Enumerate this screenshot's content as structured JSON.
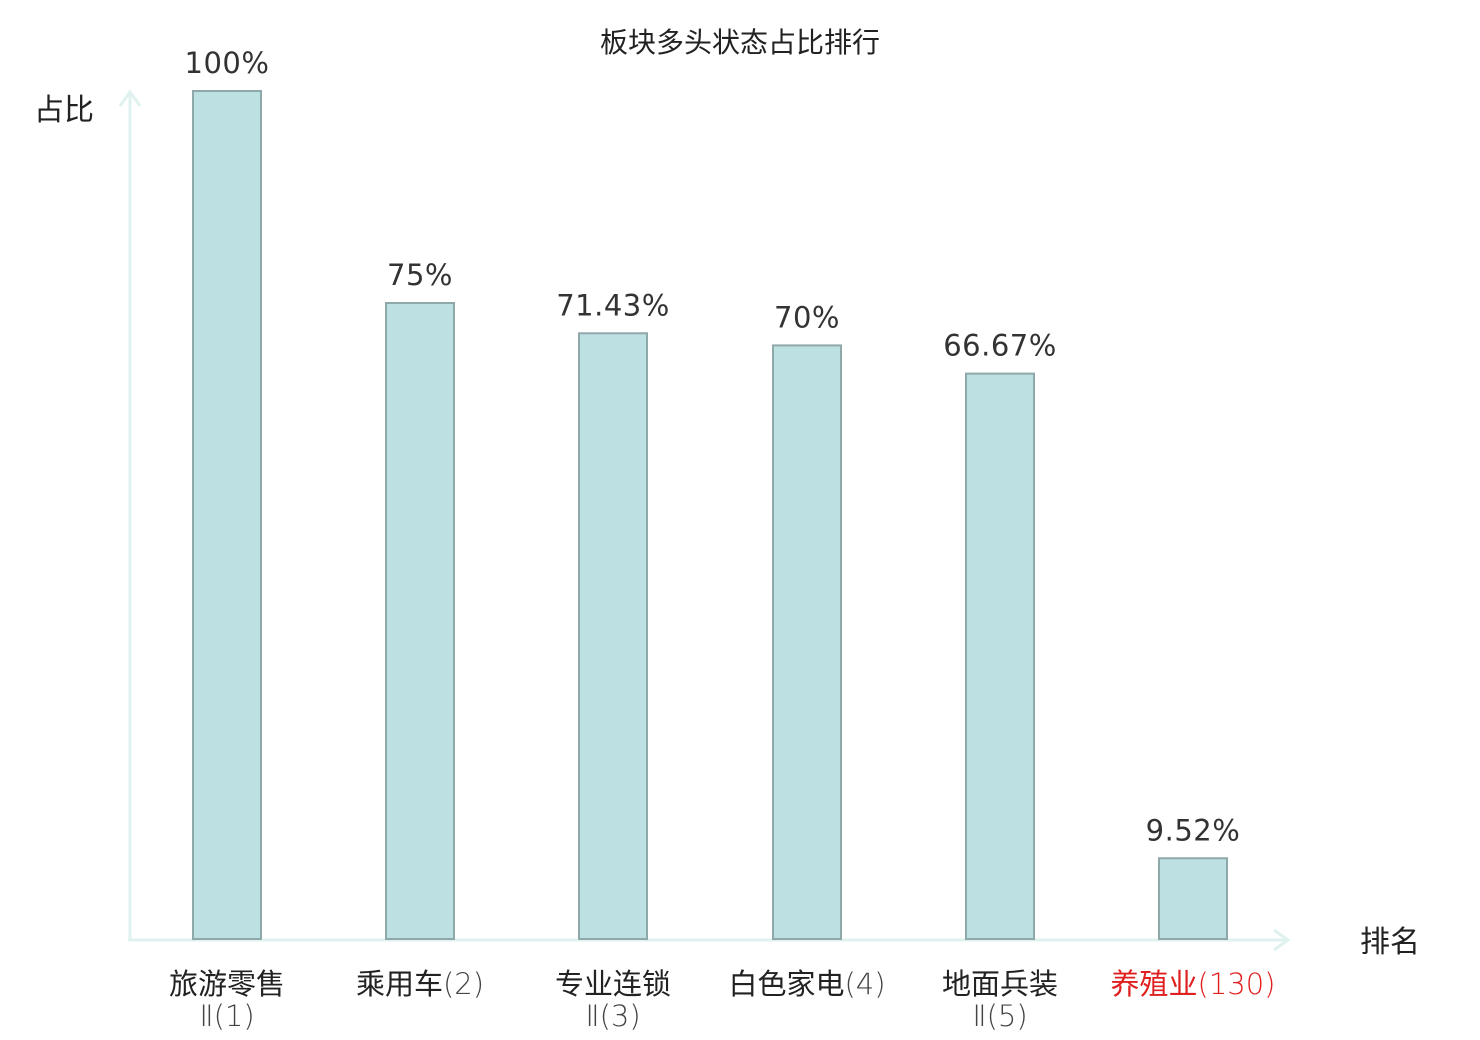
{
  "colors": {
    "bar_fill": "#bde0e3",
    "bar_stroke": "#8fa8aa",
    "axis": "#e0f2ef",
    "text": "#222222",
    "rank_text": "#444444",
    "highlight": "#e02020"
  },
  "chart_data": {
    "type": "bar",
    "title": "板块多头状态占比排行",
    "ylabel": "占比",
    "xlabel": "排名",
    "ylim": [
      0,
      100
    ],
    "grid": false,
    "categories": [
      {
        "name_line1": "旅游零售",
        "name_line2": "Ⅱ",
        "rank": "(1)",
        "highlight": false
      },
      {
        "name_line1": "乘用车",
        "name_line2": "",
        "rank": "(2)",
        "highlight": false
      },
      {
        "name_line1": "专业连锁",
        "name_line2": "Ⅱ",
        "rank": "(3)",
        "highlight": false
      },
      {
        "name_line1": "白色家电",
        "name_line2": "",
        "rank": "(4)",
        "highlight": false
      },
      {
        "name_line1": "地面兵装",
        "name_line2": "Ⅱ",
        "rank": "(5)",
        "highlight": false
      },
      {
        "name_line1": "养殖业",
        "name_line2": "",
        "rank": "(130)",
        "highlight": true
      }
    ],
    "values": [
      100,
      75,
      71.43,
      70,
      66.67,
      9.52
    ],
    "value_labels": [
      "100%",
      "75%",
      "71.43%",
      "70%",
      "66.67%",
      "9.52%"
    ]
  }
}
